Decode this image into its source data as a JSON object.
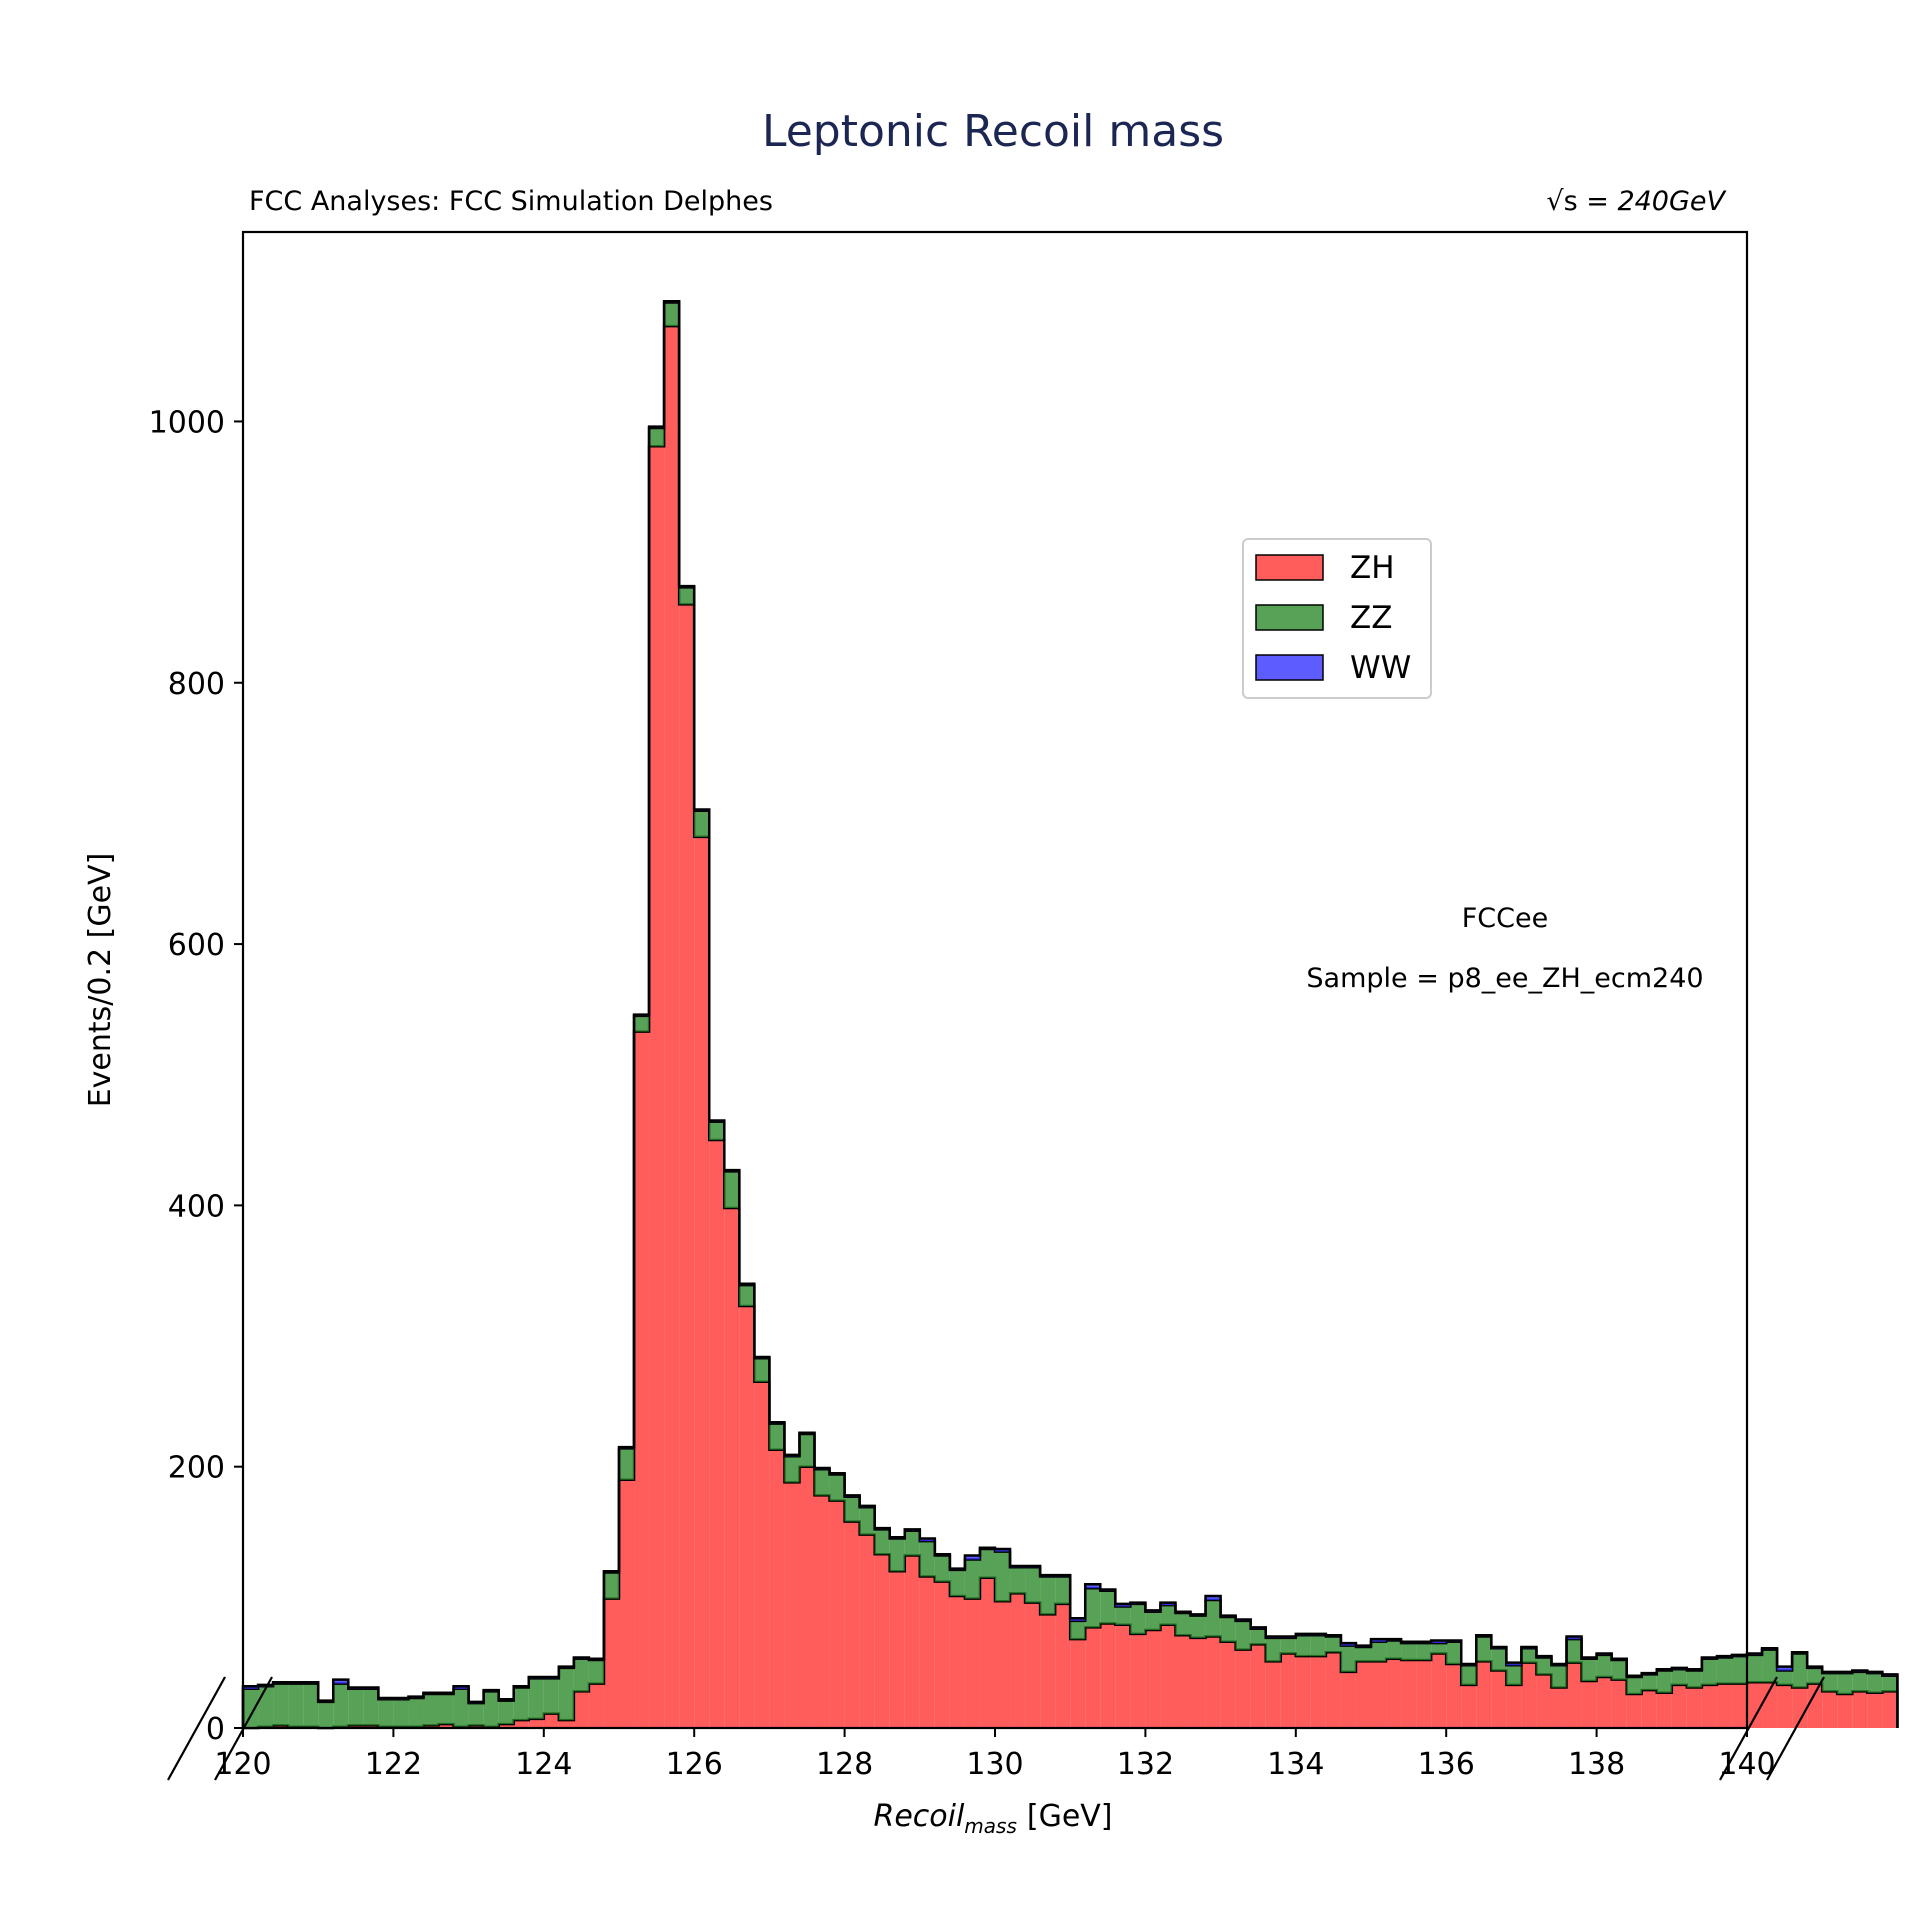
{
  "chart_data": {
    "type": "bar",
    "title": "Leptonic Recoil mass",
    "subtitle_left": "FCC Analyses: FCC Simulation Delphes",
    "subtitle_right_math": "√s",
    "subtitle_right_value": "240GeV",
    "xlabel_main": "Recoil",
    "xlabel_sub": "mass",
    "xlabel_unit": "[GeV]",
    "ylabel": "Events/0.2 [GeV]",
    "xlim": [
      120,
      140
    ],
    "ylim": [
      0,
      1145
    ],
    "xticks": [
      "120",
      "122",
      "124",
      "126",
      "128",
      "130",
      "132",
      "134",
      "136",
      "138",
      "140"
    ],
    "yticks": [
      "0",
      "200",
      "400",
      "600",
      "800",
      "1000"
    ],
    "stacked": true,
    "bin_width": 0.2,
    "annotation_1": "FCCee",
    "annotation_2": "Sample = p8_ee_ZH_ecm240",
    "legend_position": "upper right",
    "series": [
      {
        "name": "ZH",
        "color": "#ff3333",
        "values": [
          0,
          1,
          2,
          1,
          1,
          0,
          1,
          2,
          2,
          1,
          1,
          1,
          2,
          3,
          1,
          2,
          1,
          3,
          6,
          7,
          11,
          6,
          28,
          34,
          99,
          190,
          533,
          981,
          1073,
          860,
          682,
          450,
          398,
          323,
          265,
          213,
          188,
          200,
          178,
          174,
          158,
          148,
          133,
          120,
          132,
          116,
          112,
          101,
          99,
          115,
          97,
          103,
          96,
          87,
          95,
          68,
          77,
          80,
          79,
          72,
          75,
          79,
          71,
          69,
          70,
          66,
          60,
          64,
          51,
          57,
          55,
          55,
          58,
          43,
          51,
          51,
          53,
          52,
          52,
          57,
          49,
          33,
          51,
          44,
          33,
          50,
          41,
          31,
          50,
          36,
          39,
          37,
          26,
          29,
          27,
          33,
          31,
          33,
          34,
          34,
          35,
          35,
          33,
          31,
          34,
          28,
          26,
          28,
          27,
          28
        ]
      },
      {
        "name": "ZZ",
        "color": "#2e8b2e",
        "values": [
          30,
          31,
          32,
          33,
          33,
          20,
          33,
          28,
          28,
          21,
          21,
          22,
          24,
          23,
          29,
          17,
          27,
          18,
          25,
          31,
          27,
          40,
          25,
          18,
          20,
          24,
          12,
          14,
          18,
          13,
          20,
          14,
          28,
          16,
          18,
          20,
          20,
          25,
          20,
          20,
          19,
          21,
          19,
          25,
          19,
          27,
          20,
          20,
          30,
          22,
          38,
          20,
          27,
          29,
          21,
          14,
          30,
          25,
          14,
          23,
          14,
          15,
          17,
          17,
          28,
          19,
          22,
          12,
          18,
          12,
          16,
          16,
          12,
          20,
          11,
          15,
          14,
          13,
          13,
          8,
          17,
          15,
          19,
          17,
          15,
          11,
          13,
          17,
          18,
          17,
          17,
          15,
          13,
          12,
          17,
          12,
          13,
          20,
          20,
          21,
          21,
          25,
          11,
          26,
          12,
          14,
          16,
          15,
          15,
          12
        ],
        "note": "ZZ component on top of ZH (stacked)"
      },
      {
        "name": "WW",
        "color": "#3333ff",
        "values": [
          2,
          1,
          1,
          1,
          1,
          1,
          3,
          1,
          1,
          1,
          1,
          1,
          1,
          1,
          2,
          1,
          1,
          1,
          1,
          1,
          1,
          1,
          1,
          1,
          1,
          1,
          1,
          1,
          1,
          1,
          1,
          1,
          1,
          1,
          1,
          1,
          1,
          1,
          1,
          1,
          1,
          1,
          1,
          1,
          1,
          2,
          1,
          1,
          3,
          1,
          2,
          1,
          1,
          1,
          1,
          2,
          3,
          1,
          2,
          1,
          1,
          2,
          1,
          1,
          3,
          1,
          1,
          1,
          1,
          1,
          1,
          1,
          1,
          2,
          1,
          2,
          1,
          1,
          1,
          2,
          1,
          1,
          1,
          1,
          2,
          1,
          1,
          1,
          2,
          1,
          1,
          1,
          1,
          1,
          1,
          1,
          1,
          1,
          1,
          1,
          1,
          1,
          3,
          1,
          1,
          1,
          1,
          1,
          1,
          1
        ]
      }
    ]
  }
}
